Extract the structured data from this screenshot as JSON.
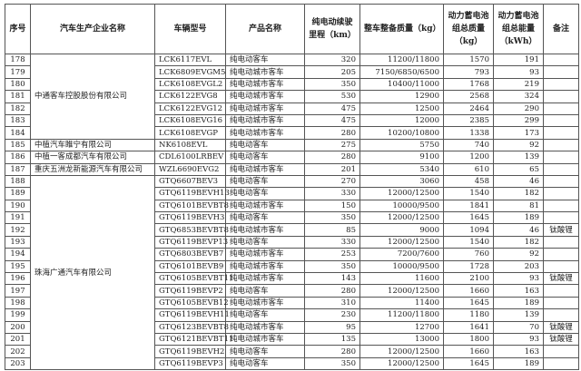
{
  "headers": [
    "序号",
    "汽车生产企业名称",
    "车辆型号",
    "产品名称",
    "纯电动续驶里程（km）",
    "整车整备质量（kg）",
    "动力蓄电池组总质量（kg）",
    "动力蓄电池组总能量（kWh）",
    "备注"
  ],
  "groups": [
    {
      "company": "中通客车控股股份有限公司",
      "rows": [
        [
          "178",
          "LCK6117EVL",
          "纯电动客车",
          "320",
          "11200/11800",
          "1570",
          "191",
          ""
        ],
        [
          "179",
          "LCK6809EVGM5",
          "纯电动城市客车",
          "205",
          "7150/6850/6500",
          "793",
          "93",
          ""
        ],
        [
          "180",
          "LCK6108EVGL2",
          "纯电动城市客车",
          "350",
          "10400/11000",
          "1768",
          "219",
          ""
        ],
        [
          "181",
          "LCK6122EVG8",
          "纯电动城市客车",
          "530",
          "12900",
          "2568",
          "324",
          ""
        ],
        [
          "182",
          "LCK6122EVG12",
          "纯电动城市客车",
          "475",
          "12500",
          "2464",
          "290",
          ""
        ],
        [
          "183",
          "LCK6108EVG16",
          "纯电动城市客车",
          "475",
          "12000",
          "2385",
          "299",
          ""
        ],
        [
          "184",
          "LCK6108EVGP",
          "纯电动城市客车",
          "280",
          "10200/10800",
          "1338",
          "173",
          ""
        ]
      ]
    },
    {
      "company": "中植汽车睢宁有限公司",
      "rows": [
        [
          "185",
          "NK6108EVL",
          "纯电动客车",
          "275",
          "5750",
          "740",
          "92",
          ""
        ]
      ]
    },
    {
      "company": "中植一客成都汽车有限公司",
      "rows": [
        [
          "186",
          "CDL6100LRBEV",
          "纯电动客车",
          "280",
          "9100",
          "1200",
          "139",
          ""
        ]
      ]
    },
    {
      "company": "重庆五洲龙新能源汽车有限公司",
      "rows": [
        [
          "187",
          "WZL6690EVG2",
          "纯电动城市客车",
          "201",
          "5340",
          "610",
          "65",
          ""
        ]
      ]
    },
    {
      "company": "珠海广通汽车有限公司",
      "rows": [
        [
          "188",
          "GTQ6607BEV3",
          "纯电动客车",
          "270",
          "3060",
          "458",
          "46",
          ""
        ],
        [
          "189",
          "GTQ6119BEVH13",
          "纯电动客车",
          "330",
          "12000/12500",
          "1540",
          "182",
          ""
        ],
        [
          "190",
          "GTQ6101BEVBT8",
          "纯电动城市客车",
          "150",
          "10000/9500",
          "1841",
          "81",
          ""
        ],
        [
          "191",
          "GTQ6119BEVH3",
          "纯电动客车",
          "350",
          "12000/12500",
          "1645",
          "189",
          ""
        ],
        [
          "192",
          "GTQ6853BEVBT8",
          "纯电动城市客车",
          "85",
          "9000",
          "1094",
          "46",
          "钛酸锂"
        ],
        [
          "193",
          "GTQ6119BEVP13",
          "纯电动客车",
          "330",
          "12000/12500",
          "1540",
          "182",
          ""
        ],
        [
          "194",
          "GTQ6803BEVB7",
          "纯电动城市客车",
          "253",
          "7200/7600",
          "760",
          "92",
          ""
        ],
        [
          "195",
          "GTQ6101BEVB9",
          "纯电动城市客车",
          "350",
          "10000/9500",
          "1728",
          "203",
          ""
        ],
        [
          "196",
          "GTQ6105BEVBT11",
          "纯电动城市客车",
          "143",
          "11600",
          "2100",
          "93",
          "钛酸锂"
        ],
        [
          "197",
          "GTQ6119BEVP2",
          "纯电动客车",
          "280",
          "12000/12500",
          "1660",
          "163",
          ""
        ],
        [
          "198",
          "GTQ6105BEVB12",
          "纯电动城市客车",
          "310",
          "11400",
          "1645",
          "189",
          ""
        ],
        [
          "199",
          "GTQ6119BEVH11",
          "纯电动客车",
          "230",
          "11200/11800",
          "1180",
          "139",
          ""
        ],
        [
          "200",
          "GTQ6123BEVBT8",
          "纯电动城市客车",
          "95",
          "12700",
          "1641",
          "70",
          "钛酸锂"
        ],
        [
          "201",
          "GTQ6121BEVBT11",
          "纯电动城市客车",
          "135",
          "13000",
          "1800",
          "93",
          "钛酸锂"
        ],
        [
          "202",
          "GTQ6119BEVH2",
          "纯电动客车",
          "280",
          "12000/12500",
          "1660",
          "163",
          ""
        ],
        [
          "203",
          "GTQ6119BEVP3",
          "纯电动客车",
          "350",
          "12000/12500",
          "1645",
          "189",
          ""
        ]
      ]
    }
  ]
}
